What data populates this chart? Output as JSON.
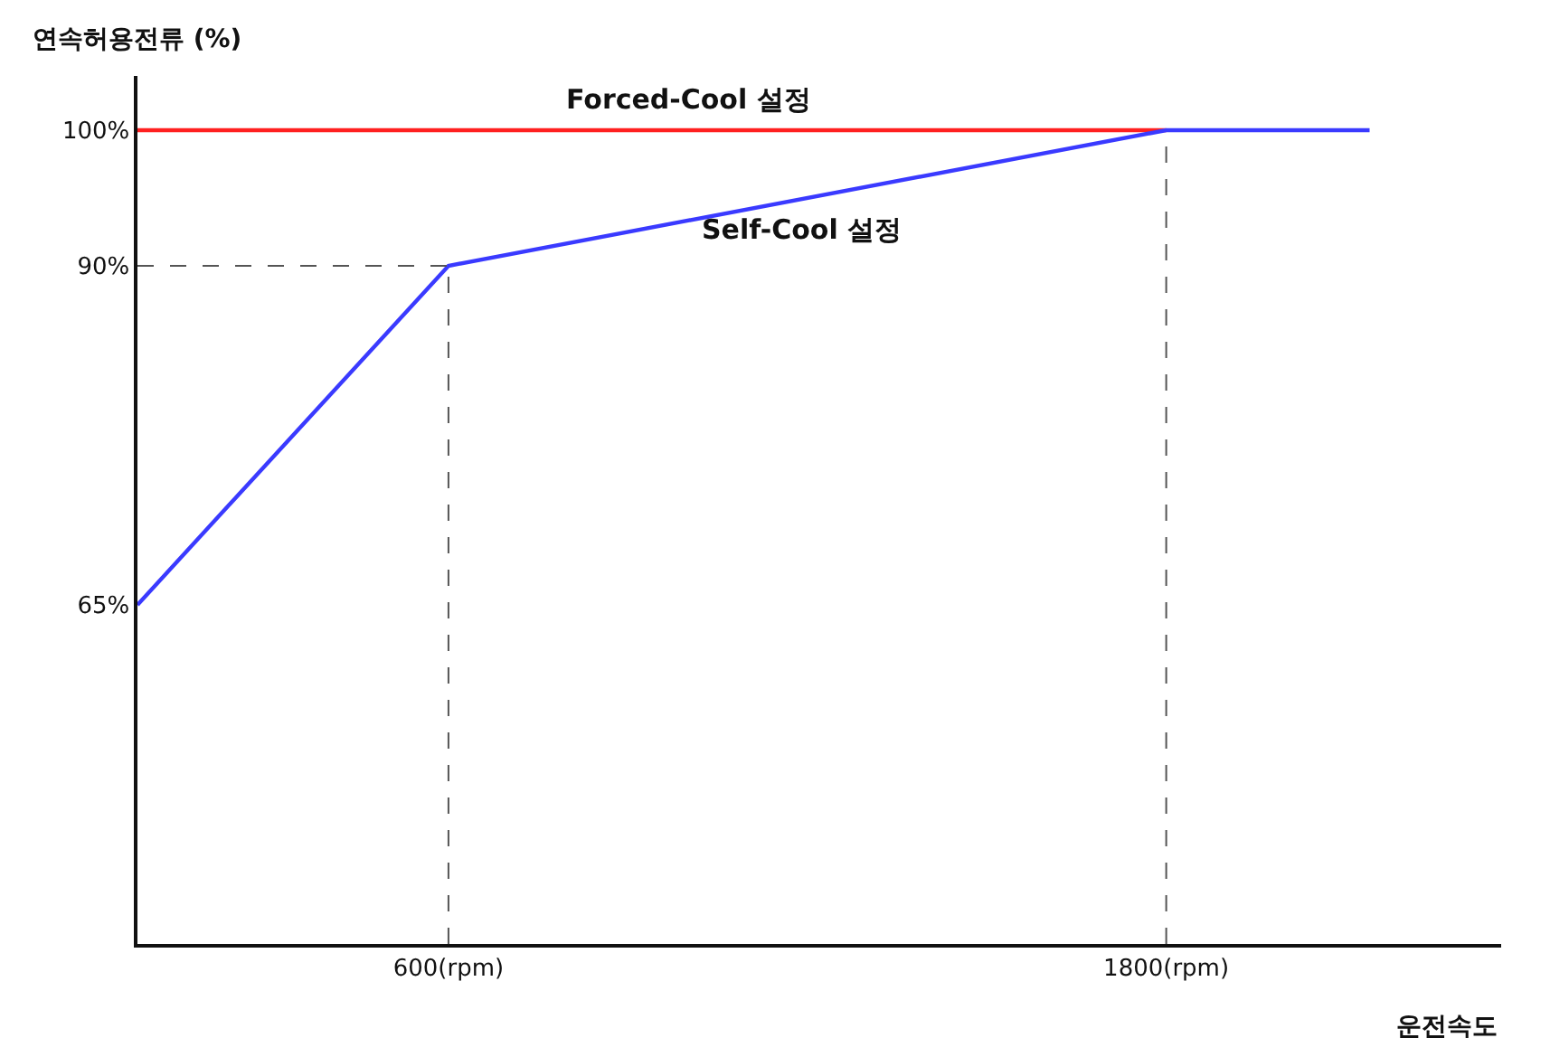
{
  "chart_data": {
    "type": "line",
    "xlabel": "운전속도",
    "ylabel": "연속허용전류 (%)",
    "xlim": [
      80,
      2360
    ],
    "ylim": [
      40,
      104
    ],
    "xticks": [
      {
        "value": 600,
        "label": "600(rpm)"
      },
      {
        "value": 1800,
        "label": "1800(rpm)"
      }
    ],
    "yticks": [
      {
        "value": 65,
        "label": "65%"
      },
      {
        "value": 90,
        "label": "90%"
      },
      {
        "value": 100,
        "label": "100%"
      }
    ],
    "grid": false,
    "marker": "none",
    "series": [
      {
        "color": "#ff2020",
        "x": [
          80,
          1800
        ],
        "values": [
          100,
          100
        ]
      },
      {
        "color": "#3a3aff",
        "x": [
          80,
          600,
          1800,
          2140
        ],
        "values": [
          65,
          90,
          100,
          100
        ]
      }
    ],
    "ref_lines": [
      {
        "axis": "x",
        "value": 600,
        "line_style": "dashed",
        "color": "#555555"
      },
      {
        "axis": "x",
        "value": 1800,
        "line_style": "dashed",
        "color": "#555555"
      },
      {
        "axis": "y",
        "value": 90,
        "line_style": "dashed",
        "color": "#555555"
      }
    ],
    "annotations": [
      {
        "text": "Forced-Cool 설정",
        "x": 1000,
        "y": 100
      },
      {
        "text": "Self-Cool 설정",
        "x": 1190,
        "y": 95
      }
    ]
  }
}
